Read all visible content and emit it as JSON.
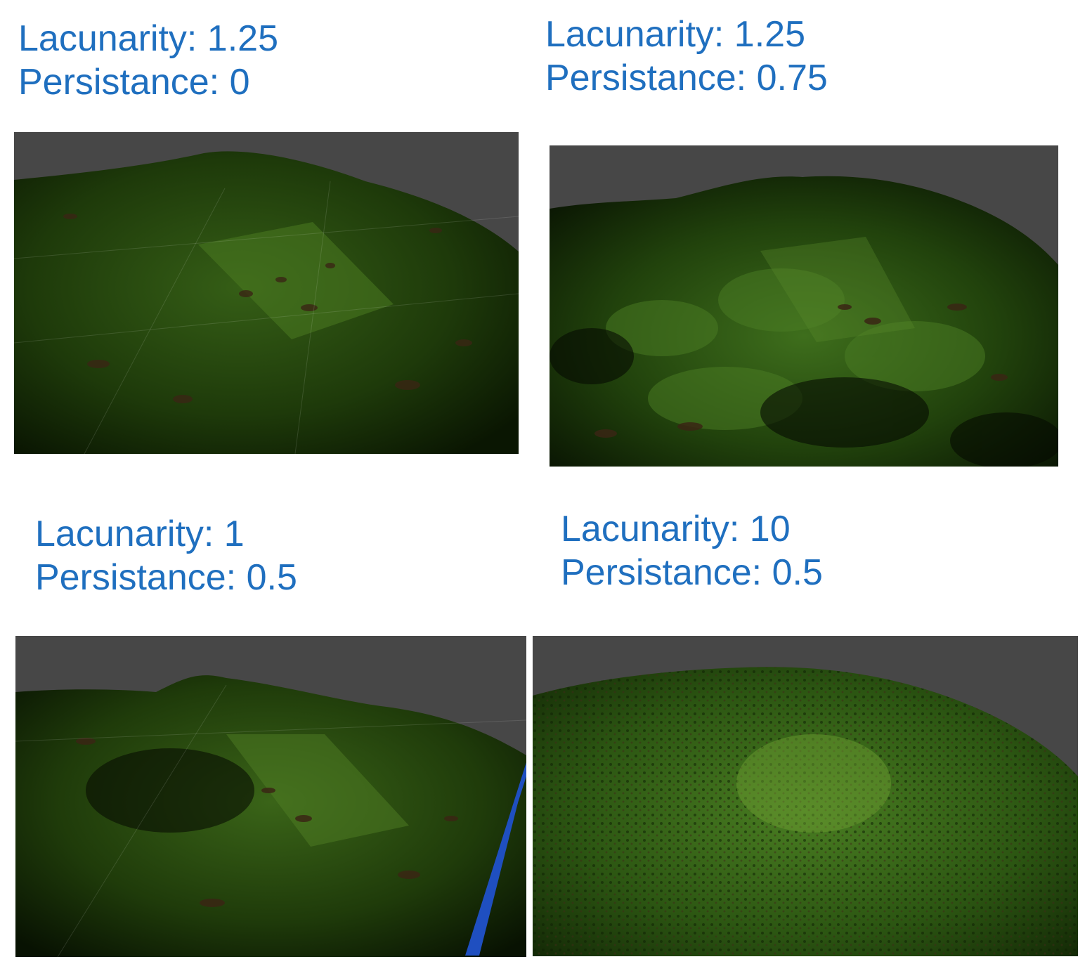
{
  "panels": [
    {
      "lacunarity_label": "Lacunarity: 1.25",
      "persistance_label": "Persistance: 0",
      "render": "terrain-render-smooth-hills",
      "colors": {
        "sky": "#474747",
        "grass_dark": "#0c1a03",
        "grass": "#2a4a12",
        "grass_light": "#4d7a22",
        "dirt": "#3a2614"
      }
    },
    {
      "lacunarity_label": "Lacunarity: 1.25",
      "persistance_label": "Persistance: 0.75",
      "render": "terrain-render-bumpy-hills",
      "colors": {
        "sky": "#474747",
        "grass_dark": "#0a1402",
        "grass": "#2f5514",
        "grass_light": "#52832a",
        "dirt": "#3a2614"
      }
    },
    {
      "lacunarity_label": "Lacunarity: 1",
      "persistance_label": "Persistance: 0.5",
      "render": "terrain-render-single-hill",
      "colors": {
        "sky": "#474747",
        "grass_dark": "#0b1803",
        "grass": "#2b4c12",
        "grass_light": "#4f7d24",
        "dirt": "#3a2614",
        "water": "#1f4fc0"
      }
    },
    {
      "lacunarity_label": "Lacunarity: 10",
      "persistance_label": "Persistance: 0.5",
      "render": "terrain-render-rough-detail",
      "colors": {
        "sky": "#474747",
        "grass_dark": "#142a06",
        "grass": "#3a6a1a",
        "grass_light": "#6a9a30",
        "dirt": "#3f2a18"
      }
    }
  ]
}
